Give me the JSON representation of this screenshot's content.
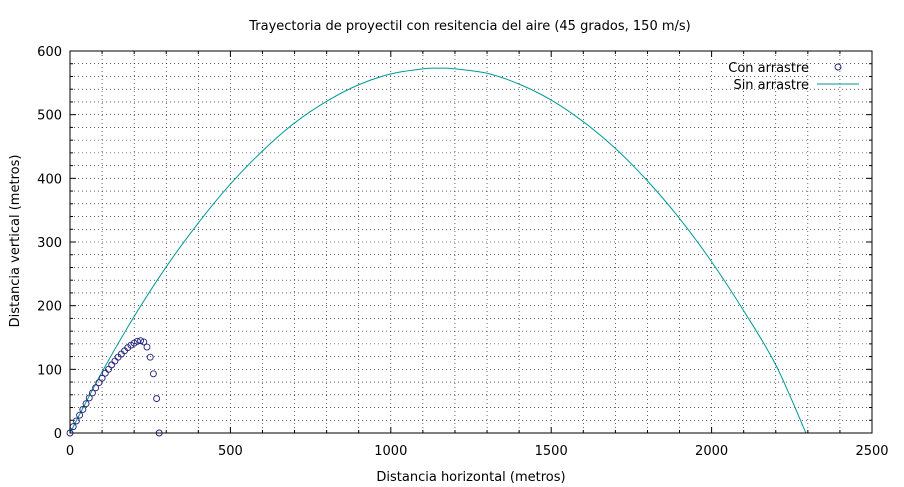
{
  "chart_data": {
    "type": "scatter",
    "title": "Trayectoria de proyectil con resitencia del aire (45 grados, 150 m/s)",
    "xlabel": "Distancia horizontal (metros)",
    "ylabel": "Distancia vertical (metros)",
    "xlim": [
      0,
      2500
    ],
    "ylim": [
      0,
      600
    ],
    "xticks": [
      0,
      500,
      1000,
      1500,
      2000,
      2500
    ],
    "yticks": [
      0,
      100,
      200,
      300,
      400,
      500,
      600
    ],
    "grid": true,
    "grid_style": "dotted",
    "legend_position": "top-right",
    "series": [
      {
        "name": "Con arrastre",
        "style": "open-circles",
        "color": "#1f1f7a",
        "x": [
          0,
          10,
          20,
          30,
          40,
          50,
          60,
          70,
          80,
          90,
          100,
          110,
          120,
          130,
          140,
          150,
          160,
          170,
          180,
          190,
          200,
          210,
          220,
          230,
          240,
          250,
          260,
          270,
          278
        ],
        "y": [
          0,
          10,
          19,
          28,
          37,
          46,
          55,
          63,
          71,
          79,
          86,
          94,
          100,
          107,
          113,
          119,
          124,
          129,
          134,
          138,
          141,
          144,
          145,
          143,
          135,
          119,
          93,
          54,
          0
        ]
      },
      {
        "name": "Sin arrastre",
        "style": "line",
        "color": "#009999",
        "x": [
          0,
          100,
          200,
          300,
          400,
          500,
          600,
          700,
          800,
          900,
          1000,
          1100,
          1147,
          1200,
          1300,
          1400,
          1500,
          1600,
          1700,
          1800,
          1900,
          2000,
          2100,
          2200,
          2294
        ],
        "y": [
          0,
          96,
          183,
          261,
          330,
          391,
          443,
          487,
          521,
          547,
          564,
          572,
          573,
          572,
          565,
          548,
          523,
          489,
          447,
          396,
          337,
          269,
          192,
          107,
          0
        ]
      }
    ]
  }
}
